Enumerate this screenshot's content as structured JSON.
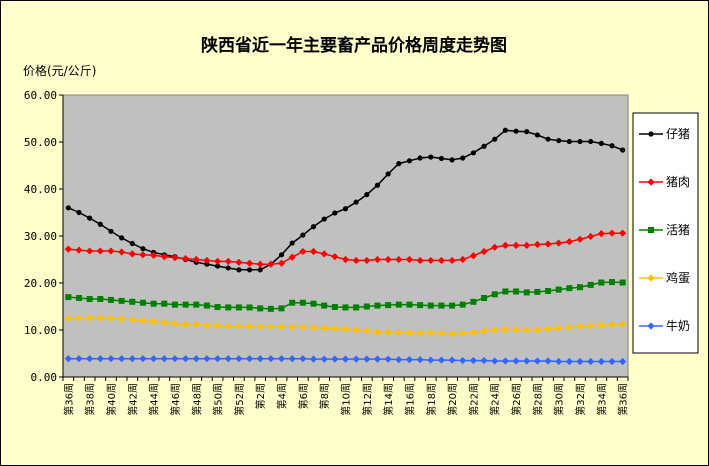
{
  "chart_data": {
    "type": "line",
    "title": "陕西省近一年主要畜产品价格周度走势图",
    "ylabel": "价格(元/公斤)",
    "xlabel": "",
    "ylim": [
      0,
      60
    ],
    "yticks": [
      "0.00",
      "10.00",
      "20.00",
      "30.00",
      "40.00",
      "50.00",
      "60.00"
    ],
    "grid": false,
    "legend_position": "right",
    "x": [
      "第36周",
      "第37周",
      "第38周",
      "第39周",
      "第40周",
      "第41周",
      "第42周",
      "第43周",
      "第44周",
      "第45周",
      "第46周",
      "第47周",
      "第48周",
      "第49周",
      "第50周",
      "第51周",
      "第52周",
      "第1周",
      "第2周",
      "第3周",
      "第4周",
      "第5周",
      "第6周",
      "第7周",
      "第8周",
      "第9周",
      "第10周",
      "第11周",
      "第12周",
      "第13周",
      "第14周",
      "第15周",
      "第16周",
      "第17周",
      "第18周",
      "第19周",
      "第20周",
      "第21周",
      "第22周",
      "第23周",
      "第24周",
      "第25周",
      "第26周",
      "第27周",
      "第28周",
      "第29周",
      "第30周",
      "第31周",
      "第32周",
      "第33周",
      "第34周",
      "第35周",
      "第36周"
    ],
    "xtick_labels": [
      "第36周",
      "第38周",
      "第40周",
      "第42周",
      "第44周",
      "第46周",
      "第48周",
      "第50周",
      "第52周",
      "第2周",
      "第4周",
      "第6周",
      "第8周",
      "第10周",
      "第12周",
      "第14周",
      "第16周",
      "第18周",
      "第20周",
      "第22周",
      "第24周",
      "第26周",
      "第28周",
      "第30周",
      "第32周",
      "第34周",
      "第36周"
    ],
    "series": [
      {
        "name": "仔猪",
        "color": "#000000",
        "marker": "circle",
        "values": [
          36.0,
          35.0,
          33.8,
          32.5,
          31.0,
          29.6,
          28.4,
          27.3,
          26.5,
          26.0,
          25.6,
          25.0,
          24.4,
          24.0,
          23.6,
          23.2,
          22.8,
          22.8,
          22.8,
          24.0,
          26.0,
          28.5,
          30.2,
          32.0,
          33.6,
          34.9,
          35.8,
          37.2,
          38.8,
          40.8,
          43.2,
          45.4,
          46.0,
          46.6,
          46.8,
          46.5,
          46.2,
          46.6,
          47.7,
          49.1,
          50.6,
          52.5,
          52.3,
          52.2,
          51.5,
          50.6,
          50.3,
          50.1,
          50.1,
          50.1,
          49.7,
          49.2,
          48.3
        ]
      },
      {
        "name": "猪肉",
        "color": "#ff0000",
        "marker": "diamond",
        "values": [
          27.2,
          27.0,
          26.8,
          26.8,
          26.8,
          26.6,
          26.2,
          26.0,
          25.9,
          25.6,
          25.4,
          25.2,
          25.0,
          24.8,
          24.6,
          24.6,
          24.4,
          24.2,
          24.0,
          24.0,
          24.2,
          25.5,
          26.7,
          26.7,
          26.2,
          25.6,
          25.0,
          24.8,
          24.8,
          25.0,
          25.0,
          25.0,
          25.0,
          24.8,
          24.8,
          24.8,
          24.8,
          25.0,
          25.8,
          26.7,
          27.6,
          28.0,
          28.0,
          28.0,
          28.2,
          28.3,
          28.5,
          28.8,
          29.3,
          29.9,
          30.5,
          30.6,
          30.6
        ]
      },
      {
        "name": "活猪",
        "color": "#008000",
        "marker": "square",
        "values": [
          17.0,
          16.8,
          16.6,
          16.6,
          16.4,
          16.2,
          16.0,
          15.8,
          15.6,
          15.6,
          15.4,
          15.4,
          15.4,
          15.2,
          14.9,
          14.8,
          14.8,
          14.8,
          14.6,
          14.5,
          14.6,
          15.8,
          15.8,
          15.6,
          15.2,
          14.9,
          14.8,
          14.8,
          15.0,
          15.2,
          15.3,
          15.4,
          15.4,
          15.3,
          15.2,
          15.2,
          15.2,
          15.4,
          16.0,
          16.8,
          17.6,
          18.2,
          18.2,
          18.0,
          18.1,
          18.3,
          18.6,
          18.9,
          19.1,
          19.6,
          20.1,
          20.2,
          20.1
        ]
      },
      {
        "name": "鸡蛋",
        "color": "#ffc000",
        "marker": "diamond",
        "values": [
          12.5,
          12.5,
          12.6,
          12.6,
          12.5,
          12.4,
          12.2,
          12.0,
          11.8,
          11.6,
          11.4,
          11.2,
          11.2,
          11.0,
          10.9,
          10.8,
          10.8,
          10.8,
          10.7,
          10.7,
          10.7,
          10.6,
          10.6,
          10.5,
          10.4,
          10.3,
          10.2,
          10.0,
          9.8,
          9.6,
          9.6,
          9.5,
          9.4,
          9.3,
          9.3,
          9.3,
          9.2,
          9.3,
          9.5,
          9.8,
          10.0,
          10.1,
          10.1,
          10.0,
          10.0,
          10.2,
          10.4,
          10.6,
          10.8,
          10.9,
          11.0,
          11.1,
          11.3
        ]
      },
      {
        "name": "牛奶",
        "color": "#3366ff",
        "marker": "diamond",
        "values": [
          3.9,
          3.9,
          3.9,
          3.9,
          3.9,
          3.9,
          3.9,
          3.9,
          3.9,
          3.9,
          3.9,
          3.9,
          3.9,
          3.9,
          3.9,
          3.9,
          3.9,
          3.9,
          3.9,
          3.9,
          3.9,
          3.9,
          3.9,
          3.8,
          3.8,
          3.8,
          3.8,
          3.8,
          3.8,
          3.8,
          3.8,
          3.7,
          3.7,
          3.7,
          3.6,
          3.6,
          3.6,
          3.5,
          3.5,
          3.5,
          3.4,
          3.4,
          3.4,
          3.4,
          3.4,
          3.4,
          3.3,
          3.3,
          3.3,
          3.3,
          3.3,
          3.3,
          3.3
        ]
      }
    ]
  }
}
